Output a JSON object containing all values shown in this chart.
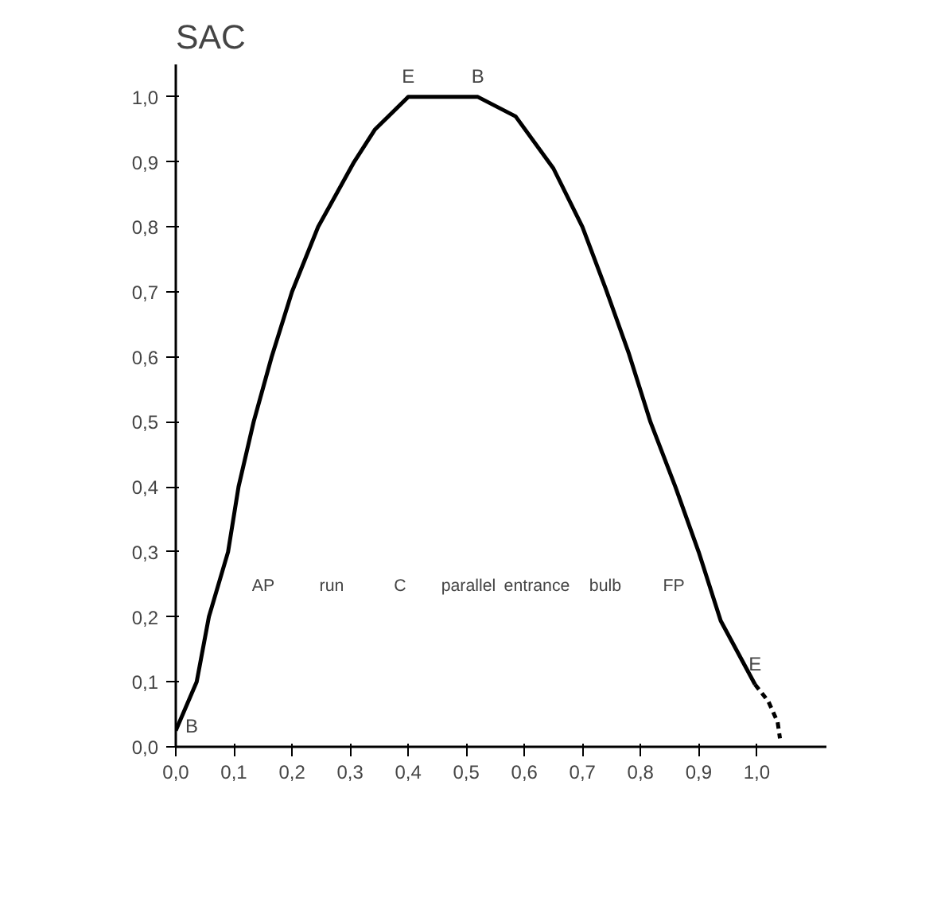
{
  "chart_data": {
    "type": "line",
    "title": "SAC",
    "grid": false,
    "marker": "none",
    "xlim": [
      0,
      1.12
    ],
    "ylim": [
      0,
      1.05
    ],
    "xticks": [
      {
        "value": 0,
        "label": "0,0"
      },
      {
        "value": 0.1,
        "label": "0,1"
      },
      {
        "value": 0.2,
        "label": "0,2"
      },
      {
        "value": 0.3,
        "label": "0,3"
      },
      {
        "value": 0.4,
        "label": "0,4"
      },
      {
        "value": 0.5,
        "label": "0,5"
      },
      {
        "value": 0.6,
        "label": "0,6"
      },
      {
        "value": 0.7,
        "label": "0,7"
      },
      {
        "value": 0.8,
        "label": "0,8"
      },
      {
        "value": 0.9,
        "label": "0,9"
      },
      {
        "value": 1.0,
        "label": "1,0"
      }
    ],
    "yticks": [
      {
        "value": 0,
        "label": "0,0"
      },
      {
        "value": 0.1,
        "label": "0,1"
      },
      {
        "value": 0.2,
        "label": "0,2"
      },
      {
        "value": 0.3,
        "label": "0,3"
      },
      {
        "value": 0.4,
        "label": "0,4"
      },
      {
        "value": 0.5,
        "label": "0,5"
      },
      {
        "value": 0.6,
        "label": "0,6"
      },
      {
        "value": 0.7,
        "label": "0,7"
      },
      {
        "value": 0.8,
        "label": "0,8"
      },
      {
        "value": 0.9,
        "label": "0,9"
      },
      {
        "value": 1.0,
        "label": "1,0"
      }
    ],
    "series": [
      {
        "color": "#000000",
        "line_style": "solid",
        "x": [
          0,
          0.036,
          0.057,
          0.09,
          0.108,
          0.134,
          0.165,
          0.2,
          0.245,
          0.307,
          0.343,
          0.4,
          0.52,
          0.585,
          0.65,
          0.7,
          0.74,
          0.78,
          0.817,
          0.86,
          0.9,
          0.938,
          0.997
        ],
        "values": [
          0.025,
          0.1,
          0.2,
          0.3,
          0.4,
          0.5,
          0.6,
          0.7,
          0.8,
          0.9,
          0.95,
          1.0,
          1.0,
          0.97,
          0.89,
          0.8,
          0.705,
          0.605,
          0.5,
          0.4,
          0.3,
          0.194,
          0.096
        ]
      },
      {
        "color": "#000000",
        "line_style": "dashed",
        "x": [
          0.997,
          1.02,
          1.036,
          1.04
        ],
        "values": [
          0.096,
          0.07,
          0.038,
          0.013
        ]
      }
    ],
    "annotations": [
      {
        "text": "E",
        "x": 0.4,
        "y": 1.0
      },
      {
        "text": "B",
        "x": 0.52,
        "y": 1.0
      },
      {
        "text": "B",
        "x": 0.0,
        "y": 0.025
      },
      {
        "text": "E",
        "x": 0.997,
        "y": 0.096
      },
      "AP",
      "run",
      "C",
      "parallel",
      "entrance",
      "bulb",
      "FP"
    ]
  }
}
